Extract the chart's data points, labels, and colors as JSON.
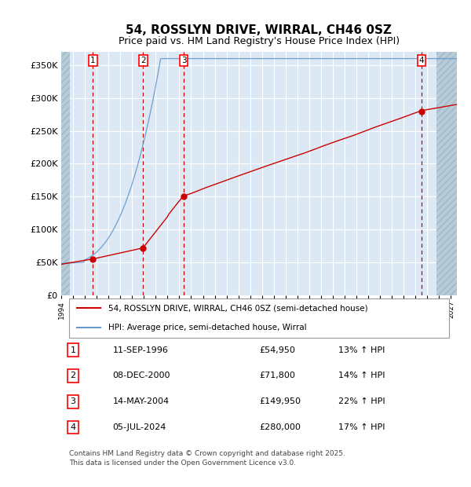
{
  "title": "54, ROSSLYN DRIVE, WIRRAL, CH46 0SZ",
  "subtitle": "Price paid vs. HM Land Registry's House Price Index (HPI)",
  "ylim": [
    0,
    370000
  ],
  "yticks": [
    0,
    50000,
    100000,
    150000,
    200000,
    250000,
    300000,
    350000
  ],
  "ytick_labels": [
    "£0",
    "£50K",
    "£100K",
    "£150K",
    "£200K",
    "£250K",
    "£300K",
    "£350K"
  ],
  "sales": [
    {
      "date_num": 1996.69,
      "price": 54950,
      "label": "1"
    },
    {
      "date_num": 2000.93,
      "price": 71800,
      "label": "2"
    },
    {
      "date_num": 2004.37,
      "price": 149950,
      "label": "3"
    },
    {
      "date_num": 2024.51,
      "price": 280000,
      "label": "4"
    }
  ],
  "sale_info": [
    {
      "num": "1",
      "date": "11-SEP-1996",
      "price": "£54,950",
      "hpi": "13% ↑ HPI"
    },
    {
      "num": "2",
      "date": "08-DEC-2000",
      "price": "£71,800",
      "hpi": "14% ↑ HPI"
    },
    {
      "num": "3",
      "date": "14-MAY-2004",
      "price": "£149,950",
      "hpi": "22% ↑ HPI"
    },
    {
      "num": "4",
      "date": "05-JUL-2024",
      "price": "£280,000",
      "hpi": "17% ↑ HPI"
    }
  ],
  "red_line_color": "#cc0000",
  "blue_line_color": "#6699cc",
  "bg_color": "#dce9f5",
  "hatch_color": "#c0d0e0",
  "grid_color": "#ffffff",
  "dashed_color": "#cc0000",
  "legend_label_red": "54, ROSSLYN DRIVE, WIRRAL, CH46 0SZ (semi-detached house)",
  "legend_label_blue": "HPI: Average price, semi-detached house, Wirral",
  "footer": "Contains HM Land Registry data © Crown copyright and database right 2025.\nThis data is licensed under the Open Government Licence v3.0.",
  "xmin": 1994.0,
  "xmax": 2027.5
}
